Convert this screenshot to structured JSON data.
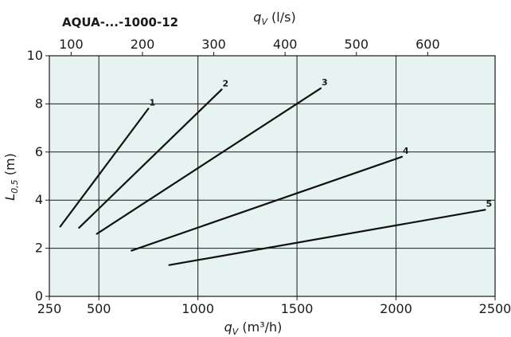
{
  "chart_data": {
    "type": "line",
    "title": "AQUA-...-1000-12",
    "xlabel": {
      "symbol": "q",
      "sub": "V",
      "unit": " (m³/h)"
    },
    "x2label": {
      "symbol": "q",
      "sub": "V",
      "unit": " (l/s)"
    },
    "ylabel": {
      "symbol": "L",
      "sub": "0,5",
      "unit": " (m)"
    },
    "xlim": [
      250,
      2500
    ],
    "x_ticks": [
      250,
      500,
      1000,
      1500,
      2000,
      2500
    ],
    "x2_ticks": [
      100,
      200,
      300,
      400,
      500,
      600
    ],
    "x2_conversion_factor": 3.6,
    "ylim": [
      0,
      10
    ],
    "y_ticks": [
      0,
      2,
      4,
      6,
      8,
      10
    ],
    "grid": true,
    "background_color": "#e6f3f1",
    "line_color": "#111111",
    "series": [
      {
        "name": "1",
        "x": [
          305,
          750
        ],
        "y": [
          2.9,
          7.8
        ]
      },
      {
        "name": "2",
        "x": [
          400,
          1120
        ],
        "y": [
          2.85,
          8.6
        ]
      },
      {
        "name": "3",
        "x": [
          490,
          1620
        ],
        "y": [
          2.6,
          8.65
        ]
      },
      {
        "name": "4",
        "x": [
          665,
          2030
        ],
        "y": [
          1.9,
          5.8
        ]
      },
      {
        "name": "5",
        "x": [
          855,
          2450
        ],
        "y": [
          1.3,
          3.6
        ]
      }
    ]
  }
}
